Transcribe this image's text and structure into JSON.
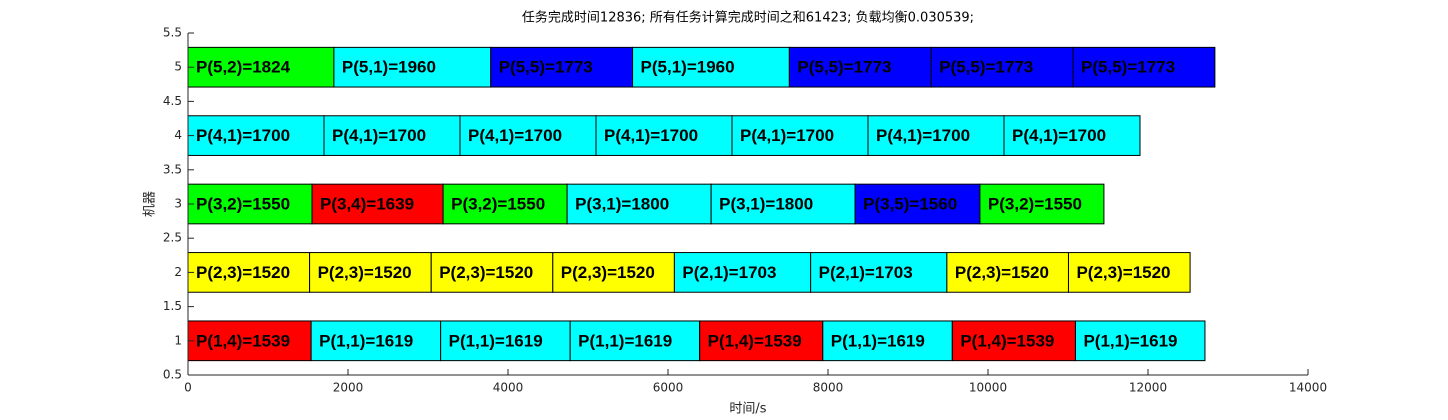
{
  "chart_data": {
    "type": "gantt",
    "title": "任务完成时间12836;  所有任务计算完成时间之和61423;  负载均衡0.030539;",
    "xlabel": "时间/s",
    "ylabel": "机器",
    "xlim": [
      0,
      14000
    ],
    "xticks": [
      0,
      2000,
      4000,
      6000,
      8000,
      10000,
      12000,
      14000
    ],
    "ylim": [
      0.5,
      5.5
    ],
    "yticks": [
      0.5,
      1,
      1.5,
      2,
      2.5,
      3,
      3.5,
      4,
      4.5,
      5,
      5.5
    ],
    "rows": [
      {
        "machine": 1,
        "values": [
          1539,
          1619,
          1619,
          1619,
          1539,
          1619,
          1539,
          1619
        ],
        "value_labels": [
          "P(1,4)=1539",
          "P(1,1)=1619",
          "P(1,1)=1619",
          "P(1,1)=1619",
          "P(1,4)=1539",
          "P(1,1)=1619",
          "P(1,4)=1539",
          "P(1,1)=1619"
        ],
        "colors": [
          "#ff0000",
          "#00ffff",
          "#00ffff",
          "#00ffff",
          "#ff0000",
          "#00ffff",
          "#ff0000",
          "#00ffff"
        ]
      },
      {
        "machine": 2,
        "values": [
          1520,
          1520,
          1520,
          1520,
          1703,
          1703,
          1520,
          1520
        ],
        "value_labels": [
          "P(2,3)=1520",
          "P(2,3)=1520",
          "P(2,3)=1520",
          "P(2,3)=1520",
          "P(2,1)=1703",
          "P(2,1)=1703",
          "P(2,3)=1520",
          "P(2,3)=1520"
        ],
        "colors": [
          "#ffff00",
          "#ffff00",
          "#ffff00",
          "#ffff00",
          "#00ffff",
          "#00ffff",
          "#ffff00",
          "#ffff00"
        ]
      },
      {
        "machine": 3,
        "values": [
          1550,
          1639,
          1550,
          1800,
          1800,
          1560,
          1550
        ],
        "value_labels": [
          "P(3,2)=1550",
          "P(3,4)=1639",
          "P(3,2)=1550",
          "P(3,1)=1800",
          "P(3,1)=1800",
          "P(3,5)=1560",
          "P(3,2)=1550"
        ],
        "colors": [
          "#00ff00",
          "#ff0000",
          "#00ff00",
          "#00ffff",
          "#00ffff",
          "#0000ff",
          "#00ff00"
        ]
      },
      {
        "machine": 4,
        "values": [
          1700,
          1700,
          1700,
          1700,
          1700,
          1700,
          1700
        ],
        "value_labels": [
          "P(4,1)=1700",
          "P(4,1)=1700",
          "P(4,1)=1700",
          "P(4,1)=1700",
          "P(4,1)=1700",
          "P(4,1)=1700",
          "P(4,1)=1700"
        ],
        "colors": [
          "#00ffff",
          "#00ffff",
          "#00ffff",
          "#00ffff",
          "#00ffff",
          "#00ffff",
          "#00ffff"
        ]
      },
      {
        "machine": 5,
        "values": [
          1824,
          1960,
          1773,
          1960,
          1773,
          1773,
          1773
        ],
        "value_labels": [
          "P(5,2)=1824",
          "P(5,1)=1960",
          "P(5,5)=1773",
          "P(5,1)=1960",
          "P(5,5)=1773",
          "P(5,5)=1773",
          "P(5,5)=1773"
        ],
        "colors": [
          "#00ff00",
          "#00ffff",
          "#0000ff",
          "#00ffff",
          "#0000ff",
          "#0000ff",
          "#0000ff"
        ]
      }
    ]
  }
}
